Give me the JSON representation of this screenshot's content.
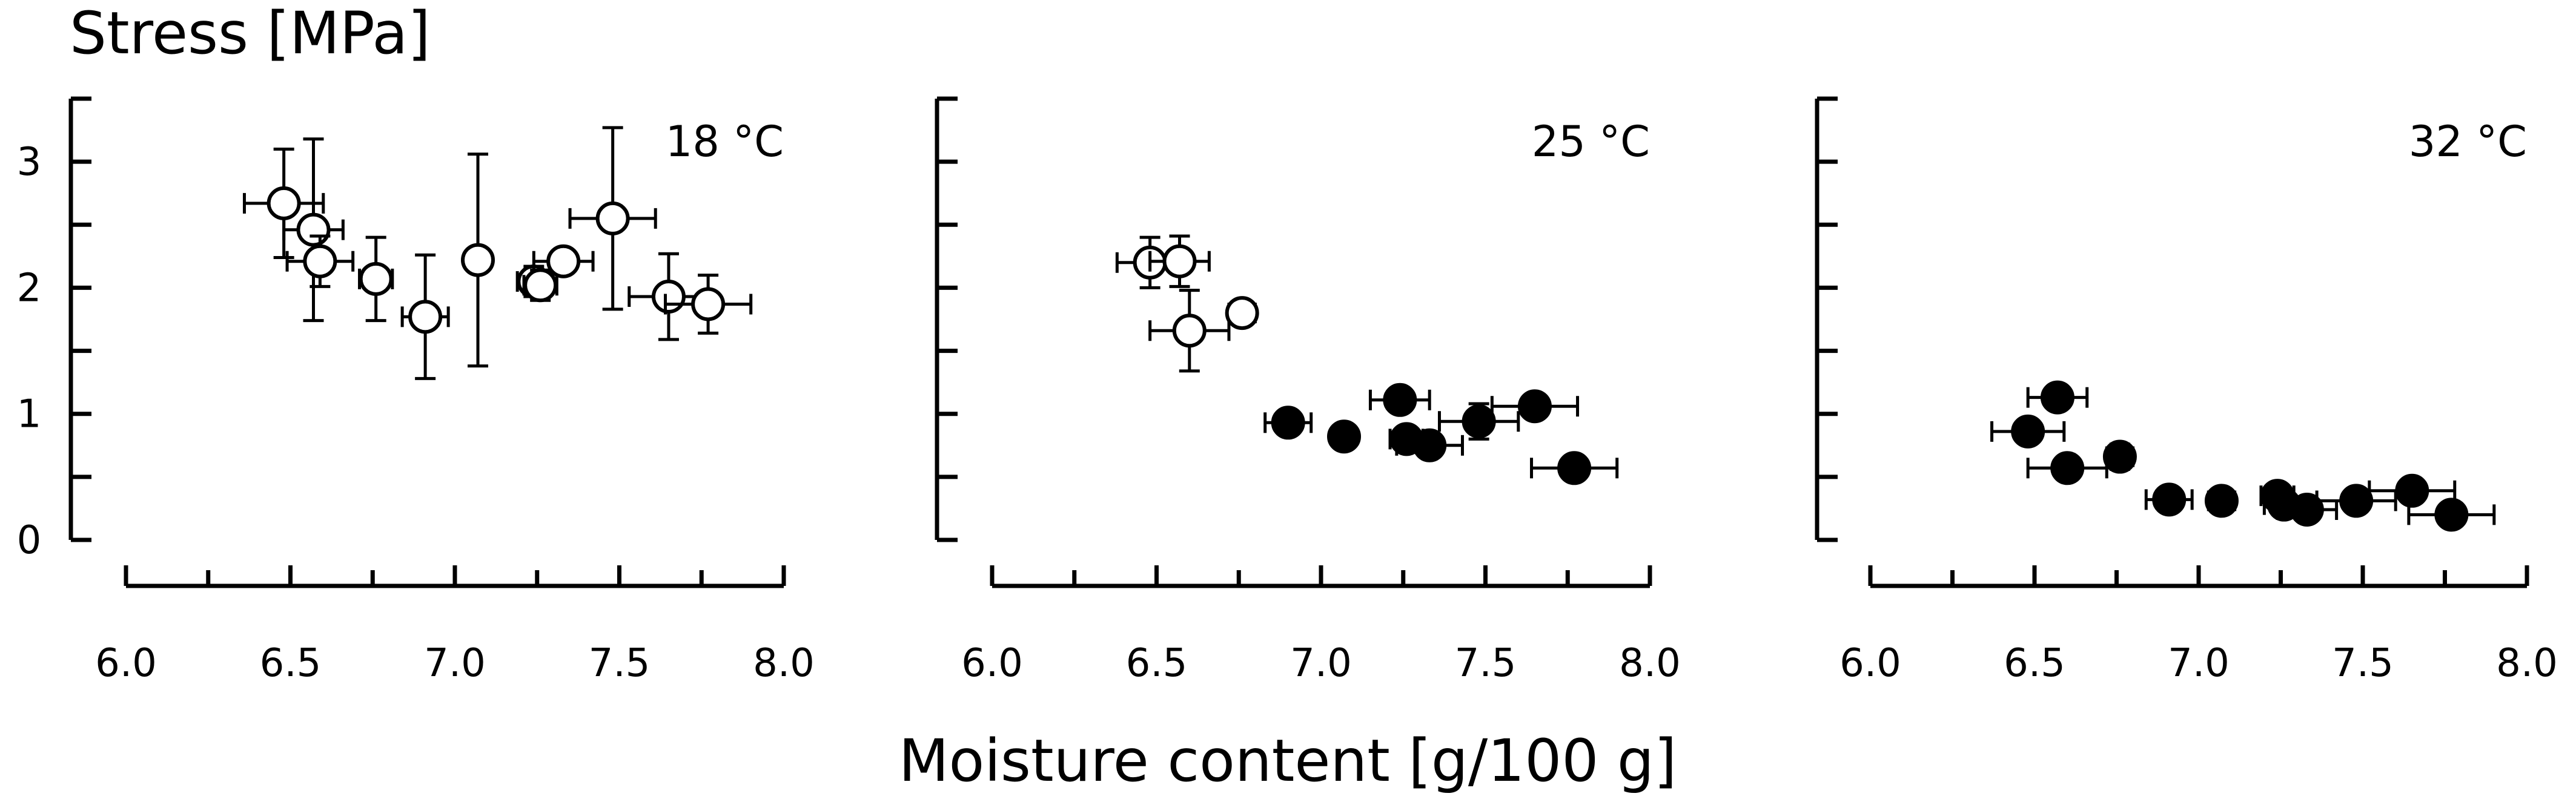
{
  "chart_data": {
    "type": "scatter",
    "ylabel": "Stress [MPa]",
    "xlabel": "Moisture content [g/100 g]",
    "xlim": [
      6.0,
      8.0
    ],
    "ylim": [
      0,
      3.5
    ],
    "xticks": [
      "6.0",
      "6.5",
      "7.0",
      "7.5",
      "8.0"
    ],
    "yticks": [
      "0",
      "1",
      "2",
      "3"
    ],
    "grid": false,
    "legend": "none",
    "marker_colors": {
      "open": "#ffffff",
      "filled": "#000000",
      "stroke": "#000000"
    },
    "panels": [
      {
        "label": "18 °C",
        "points": [
          {
            "x": 6.48,
            "y": 2.67,
            "xerr": 0.12,
            "yerr": 0.43,
            "marker": "open"
          },
          {
            "x": 6.57,
            "y": 2.46,
            "xerr": 0.09,
            "yerr": 0.72,
            "marker": "open"
          },
          {
            "x": 6.59,
            "y": 2.21,
            "xerr": 0.1,
            "yerr": 0.2,
            "marker": "open"
          },
          {
            "x": 6.76,
            "y": 2.07,
            "xerr": 0.05,
            "yerr": 0.33,
            "marker": "open"
          },
          {
            "x": 6.91,
            "y": 1.77,
            "xerr": 0.07,
            "yerr": 0.49,
            "marker": "open"
          },
          {
            "x": 7.07,
            "y": 2.22,
            "xerr": 0.02,
            "yerr": 0.84,
            "marker": "open"
          },
          {
            "x": 7.24,
            "y": 2.05,
            "xerr": 0.05,
            "yerr": 0.12,
            "marker": "open"
          },
          {
            "x": 7.26,
            "y": 2.02,
            "xerr": 0.05,
            "yerr": 0.12,
            "marker": "open"
          },
          {
            "x": 7.33,
            "y": 2.21,
            "xerr": 0.09,
            "yerr": 0.07,
            "marker": "open"
          },
          {
            "x": 7.48,
            "y": 2.55,
            "xerr": 0.13,
            "yerr": 0.72,
            "marker": "open"
          },
          {
            "x": 7.65,
            "y": 1.93,
            "xerr": 0.12,
            "yerr": 0.34,
            "marker": "open"
          },
          {
            "x": 7.77,
            "y": 1.87,
            "xerr": 0.13,
            "yerr": 0.23,
            "marker": "open"
          }
        ]
      },
      {
        "label": "25 °C",
        "points": [
          {
            "x": 6.48,
            "y": 2.2,
            "xerr": 0.1,
            "yerr": 0.2,
            "marker": "open"
          },
          {
            "x": 6.57,
            "y": 2.21,
            "xerr": 0.09,
            "yerr": 0.2,
            "marker": "open"
          },
          {
            "x": 6.6,
            "y": 1.66,
            "xerr": 0.12,
            "yerr": 0.32,
            "marker": "open"
          },
          {
            "x": 6.76,
            "y": 1.8,
            "xerr": 0.04,
            "yerr": 0.08,
            "marker": "open"
          },
          {
            "x": 6.9,
            "y": 0.93,
            "xerr": 0.07,
            "yerr": 0.08,
            "marker": "filled"
          },
          {
            "x": 7.07,
            "y": 0.82,
            "xerr": 0.03,
            "yerr": 0.08,
            "marker": "filled"
          },
          {
            "x": 7.24,
            "y": 1.11,
            "xerr": 0.09,
            "yerr": 0.07,
            "marker": "filled"
          },
          {
            "x": 7.26,
            "y": 0.8,
            "xerr": 0.05,
            "yerr": 0.06,
            "marker": "filled"
          },
          {
            "x": 7.33,
            "y": 0.75,
            "xerr": 0.1,
            "yerr": 0.08,
            "marker": "filled"
          },
          {
            "x": 7.48,
            "y": 0.94,
            "xerr": 0.12,
            "yerr": 0.14,
            "marker": "filled"
          },
          {
            "x": 7.65,
            "y": 1.06,
            "xerr": 0.13,
            "yerr": 0.06,
            "marker": "filled"
          },
          {
            "x": 7.77,
            "y": 0.57,
            "xerr": 0.13,
            "yerr": 0.06,
            "marker": "filled"
          }
        ]
      },
      {
        "label": "32 °C",
        "points": [
          {
            "x": 6.57,
            "y": 1.13,
            "xerr": 0.09,
            "yerr": 0.07,
            "marker": "filled"
          },
          {
            "x": 6.48,
            "y": 0.86,
            "xerr": 0.11,
            "yerr": 0.08,
            "marker": "filled"
          },
          {
            "x": 6.6,
            "y": 0.57,
            "xerr": 0.12,
            "yerr": 0.05,
            "marker": "filled"
          },
          {
            "x": 6.76,
            "y": 0.66,
            "xerr": 0.04,
            "yerr": 0.1,
            "marker": "filled"
          },
          {
            "x": 6.91,
            "y": 0.32,
            "xerr": 0.07,
            "yerr": 0.07,
            "marker": "filled"
          },
          {
            "x": 7.07,
            "y": 0.31,
            "xerr": 0.04,
            "yerr": 0.07,
            "marker": "filled"
          },
          {
            "x": 7.24,
            "y": 0.35,
            "xerr": 0.05,
            "yerr": 0.06,
            "marker": "filled"
          },
          {
            "x": 7.26,
            "y": 0.28,
            "xerr": 0.06,
            "yerr": 0.06,
            "marker": "filled"
          },
          {
            "x": 7.33,
            "y": 0.24,
            "xerr": 0.09,
            "yerr": 0.05,
            "marker": "filled"
          },
          {
            "x": 7.48,
            "y": 0.31,
            "xerr": 0.12,
            "yerr": 0.05,
            "marker": "filled"
          },
          {
            "x": 7.65,
            "y": 0.39,
            "xerr": 0.13,
            "yerr": 0.06,
            "marker": "filled"
          },
          {
            "x": 7.77,
            "y": 0.2,
            "xerr": 0.13,
            "yerr": 0.05,
            "marker": "filled"
          }
        ]
      }
    ]
  }
}
